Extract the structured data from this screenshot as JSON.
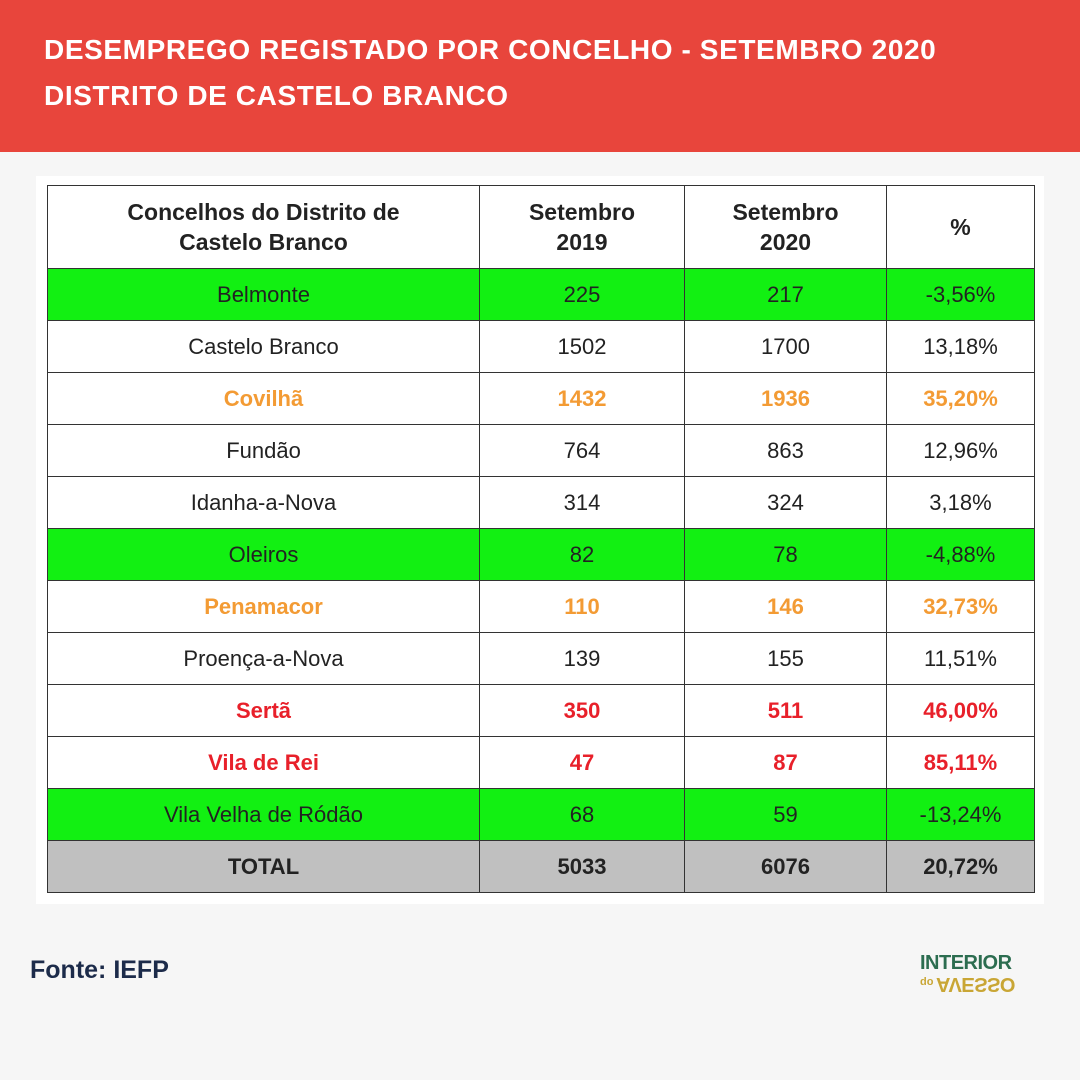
{
  "header": {
    "title": [
      "DESEMPREGO REGISTADO POR CONCELHO - SETEMBRO 2020",
      "DISTRITO DE CASTELO BRANCO"
    ]
  },
  "table": {
    "columns": [
      "Concelhos do Distrito de Castelo Branco",
      "Setembro 2019",
      "Setembro 2020",
      "%"
    ],
    "rows": [
      [
        "Belmonte",
        "225",
        "217",
        "-3,56%"
      ],
      [
        "Castelo Branco",
        "1502",
        "1700",
        "13,18%"
      ],
      [
        "Covilhã",
        "1432",
        "1936",
        "35,20%"
      ],
      [
        "Fundão",
        "764",
        "863",
        "12,96%"
      ],
      [
        "Idanha-a-Nova",
        "314",
        "324",
        "3,18%"
      ],
      [
        "Oleiros",
        "82",
        "78",
        "-4,88%"
      ],
      [
        "Penamacor",
        "110",
        "146",
        "32,73%"
      ],
      [
        "Proença-a-Nova",
        "139",
        "155",
        "11,51%"
      ],
      [
        "Sertã",
        "350",
        "511",
        "46,00%"
      ],
      [
        "Vila de Rei",
        "47",
        "87",
        "85,11%"
      ],
      [
        "Vila Velha de Ródão",
        "68",
        "59",
        "-13,24%"
      ],
      [
        "TOTAL",
        "5033",
        "6076",
        "20,72%"
      ]
    ]
  },
  "source": "Fonte: IEFP",
  "logo": {
    "top": "INTERIOR",
    "small": "do",
    "bottom": "AVESSO"
  }
}
